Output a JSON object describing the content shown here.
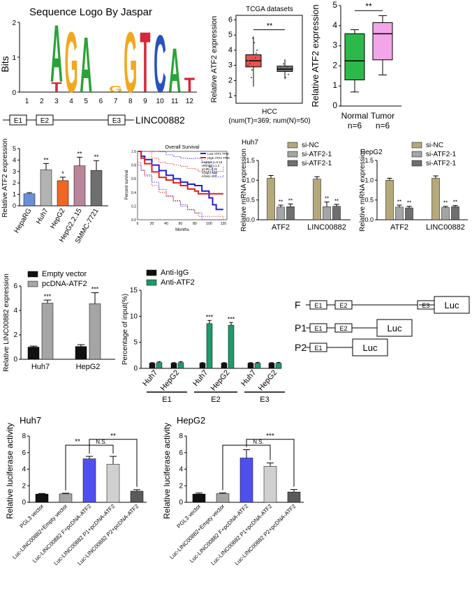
{
  "logo": {
    "title": "Sequence Logo By Jaspar",
    "ylabel": "Bits",
    "positions": [
      "1",
      "2",
      "3",
      "4",
      "5",
      "6",
      "7",
      "8",
      "9",
      "10",
      "11",
      "12"
    ],
    "letters": [
      {
        "pos": 3,
        "ch": "T",
        "color": "#d62839",
        "h": 0.3
      },
      {
        "pos": 3,
        "ch": "A",
        "color": "#2aa336",
        "h": 1.75
      },
      {
        "pos": 4,
        "ch": "G",
        "color": "#f2a81d",
        "h": 1.85
      },
      {
        "pos": 5,
        "ch": "A",
        "color": "#2aa336",
        "h": 1.7
      },
      {
        "pos": 7,
        "ch": "G",
        "color": "#f2a81d",
        "h": 0.2
      },
      {
        "pos": 8,
        "ch": "G",
        "color": "#f2a81d",
        "h": 1.85
      },
      {
        "pos": 9,
        "ch": "T",
        "color": "#d62839",
        "h": 1.85
      },
      {
        "pos": 10,
        "ch": "C",
        "color": "#2a52be",
        "h": 1.75
      },
      {
        "pos": 11,
        "ch": "A",
        "color": "#2aa336",
        "h": 1.35
      },
      {
        "pos": 12,
        "ch": "T",
        "color": "#d62839",
        "h": 0.45
      }
    ]
  },
  "gene_map": {
    "exons": [
      "E1",
      "E2",
      "E3"
    ],
    "name": "LINC00882"
  },
  "tcga": {
    "title": "TCGA datasets",
    "ylabel": "Relative ATF2 expression",
    "xlabel": "HCC",
    "n_label": "(num(T)=369; num(N)=50)",
    "sig": "**",
    "yticks": [
      "1",
      "2",
      "3",
      "4",
      "5",
      "6"
    ],
    "ylim": [
      0.5,
      6.3
    ],
    "boxes": [
      {
        "group": "T",
        "q1": 2.9,
        "median": 3.3,
        "q3": 3.7,
        "min": 1.6,
        "max": 4.9,
        "color": "#e8534f"
      },
      {
        "group": "N",
        "q1": 2.6,
        "median": 2.75,
        "q3": 2.95,
        "min": 2.1,
        "max": 3.4,
        "color": "#777777"
      }
    ]
  },
  "box_normal_tumor": {
    "ylabel": "Relative ATF2 expression",
    "yticks": [
      "0",
      "1",
      "2",
      "3",
      "4",
      "5"
    ],
    "ylim": [
      0,
      5
    ],
    "sig": "**",
    "groups": [
      {
        "name": "Normal",
        "n": "n=6",
        "min": 0.7,
        "q1": 1.3,
        "median": 2.25,
        "q3": 3.6,
        "max": 3.8,
        "color": "#2db84a"
      },
      {
        "name": "Tumor",
        "n": "n=6",
        "min": 1.55,
        "q1": 2.3,
        "median": 3.6,
        "q3": 4.15,
        "max": 4.5,
        "color": "#f2a6e8"
      }
    ]
  },
  "cell_lines": {
    "ylabel": "Relative ATF2 expression",
    "yticks": [
      "0",
      "1",
      "2",
      "3",
      "4",
      "5"
    ],
    "ylim": [
      0,
      5
    ],
    "bars": [
      {
        "cat": "HepaRG",
        "value": 1.05,
        "err": 0.1,
        "sig": "",
        "color": "#6b8fd6"
      },
      {
        "cat": "Huh7",
        "value": 3.15,
        "err": 0.55,
        "sig": "**",
        "color": "#b3b3b3"
      },
      {
        "cat": "HepG2",
        "value": 2.2,
        "err": 0.3,
        "sig": "*",
        "color": "#f26522"
      },
      {
        "cat": "HepG2.2.15",
        "value": 3.5,
        "err": 0.75,
        "sig": "**",
        "color": "#b8859b"
      },
      {
        "cat": "SMMC-7721",
        "value": 3.1,
        "err": 0.85,
        "sig": "**",
        "color": "#6f6f6f"
      }
    ]
  },
  "survival": {
    "title": "Overall Survival",
    "xlabel": "Months",
    "ylabel": "Percent survival",
    "legend": [
      "Low ATF2 TPM",
      "High ATF2 TPM"
    ],
    "stats": [
      "Logrank p=0.19",
      "HR(high)=1.3",
      "p(HR)=0.19",
      "n(high)=182",
      "n(low)=182"
    ],
    "xticks": [
      "0",
      "20",
      "40",
      "60",
      "80",
      "100",
      "120"
    ],
    "yticks": [
      "0.0",
      "0.2",
      "0.4",
      "0.6",
      "0.8",
      "1.0"
    ],
    "low_curve": [
      [
        0,
        1.0
      ],
      [
        5,
        0.93
      ],
      [
        10,
        0.88
      ],
      [
        20,
        0.8
      ],
      [
        30,
        0.72
      ],
      [
        40,
        0.65
      ],
      [
        50,
        0.6
      ],
      [
        60,
        0.55
      ],
      [
        70,
        0.52
      ],
      [
        80,
        0.5
      ],
      [
        90,
        0.42
      ],
      [
        100,
        0.32
      ],
      [
        105,
        0.22
      ],
      [
        110,
        0.15
      ],
      [
        120,
        0.15
      ]
    ],
    "high_curve": [
      [
        0,
        1.0
      ],
      [
        5,
        0.9
      ],
      [
        10,
        0.82
      ],
      [
        20,
        0.7
      ],
      [
        30,
        0.62
      ],
      [
        40,
        0.58
      ],
      [
        50,
        0.54
      ],
      [
        60,
        0.5
      ],
      [
        70,
        0.45
      ],
      [
        80,
        0.42
      ],
      [
        85,
        0.38
      ],
      [
        120,
        0.38
      ]
    ],
    "low_color": "#1f1fd6",
    "high_color": "#e0201c"
  },
  "sirna_huh7": {
    "title": "Huh7",
    "ylabel": "Relative mRNA expression",
    "yticks": [
      "0.0",
      "0.5",
      "1.0",
      "1.5"
    ],
    "ylim": [
      0,
      1.5
    ],
    "categories": [
      "ATF2",
      "LINC00882"
    ],
    "series": [
      {
        "name": "si-NC",
        "values": [
          1.05,
          1.03
        ],
        "err": [
          0.07,
          0.06
        ],
        "sig": [
          "",
          ""
        ],
        "color": "#b5a87a"
      },
      {
        "name": "si-ATF2-1",
        "values": [
          0.32,
          0.33
        ],
        "err": [
          0.05,
          0.12
        ],
        "sig": [
          "**",
          "**"
        ],
        "color": "#a5a5a5"
      },
      {
        "name": "si-ATF2-1",
        "values": [
          0.33,
          0.34
        ],
        "err": [
          0.07,
          0.05
        ],
        "sig": [
          "**",
          "**"
        ],
        "color": "#6f6f6f"
      }
    ]
  },
  "sirna_hepg2": {
    "title": "HepG2",
    "ylabel": "Relative mRNA expression",
    "yticks": [
      "0.0",
      "0.5",
      "1.0",
      "1.5"
    ],
    "ylim": [
      0,
      1.5
    ],
    "categories": [
      "ATF2",
      "LINC00882"
    ],
    "series": [
      {
        "name": "si-NC",
        "values": [
          1.0,
          1.05
        ],
        "err": [
          0.05,
          0.06
        ],
        "sig": [
          "",
          ""
        ],
        "color": "#b5a87a"
      },
      {
        "name": "si-ATF2-1",
        "values": [
          0.32,
          0.31
        ],
        "err": [
          0.05,
          0.03
        ],
        "sig": [
          "**",
          "**"
        ],
        "color": "#a5a5a5"
      },
      {
        "name": "si-ATF2-1",
        "values": [
          0.3,
          0.33
        ],
        "err": [
          0.04,
          0.03
        ],
        "sig": [
          "**",
          "**"
        ],
        "color": "#6f6f6f"
      }
    ]
  },
  "overexp": {
    "ylabel": "Relative LINC00882 expression",
    "yticks": [
      "0",
      "2",
      "4",
      "6"
    ],
    "ylim": [
      0,
      6
    ],
    "categories": [
      "Huh7",
      "HepG2"
    ],
    "series": [
      {
        "name": "Empty vector",
        "values": [
          1.0,
          1.05
        ],
        "err": [
          0.08,
          0.15
        ],
        "sig": [
          "",
          ""
        ],
        "color": "#111111"
      },
      {
        "name": "pcDNA-ATF2",
        "values": [
          4.6,
          4.55
        ],
        "err": [
          0.25,
          0.9
        ],
        "sig": [
          "***",
          "***"
        ],
        "color": "#a5a5a5"
      }
    ]
  },
  "chip": {
    "ylabel": "Percentage of input(%)",
    "yticks": [
      "0",
      "5",
      "10",
      "15"
    ],
    "ylim": [
      0,
      15
    ],
    "categories": [
      "Huh7",
      "HepG2",
      "Huh7",
      "HepG2",
      "Huh7",
      "HepG2"
    ],
    "groups": [
      "E1",
      "E2",
      "E3"
    ],
    "series": [
      {
        "name": "Anti-IgG",
        "values": [
          1.0,
          1.0,
          1.0,
          1.0,
          1.0,
          1.0
        ],
        "err": [
          0.1,
          0.1,
          0.1,
          0.1,
          0.1,
          0.1
        ],
        "sig": [
          "",
          "",
          "",
          "",
          "",
          ""
        ],
        "color": "#111111"
      },
      {
        "name": "Anti-ATF2",
        "values": [
          1.1,
          1.1,
          8.6,
          8.3,
          1.0,
          1.0
        ],
        "err": [
          0.2,
          0.2,
          0.6,
          0.5,
          0.15,
          0.15
        ],
        "sig": [
          "",
          "",
          "***",
          "***",
          "",
          ""
        ],
        "color": "#1f9a6b"
      }
    ]
  },
  "constructs": {
    "rows": [
      {
        "label": "F",
        "exons": [
          "E1",
          "E2",
          "E3"
        ],
        "reporter": "Luc"
      },
      {
        "label": "P1",
        "exons": [
          "E1",
          "E2"
        ],
        "reporter": "Luc"
      },
      {
        "label": "P2",
        "exons": [
          "E1"
        ],
        "reporter": "Luc"
      }
    ]
  },
  "luc_huh7": {
    "title": "Huh7",
    "ylabel": "Relative luciferase activity",
    "yticks": [
      "0",
      "2",
      "4",
      "6",
      "8"
    ],
    "ylim": [
      0,
      8
    ],
    "categories": [
      "PGL3 vector",
      "Luc-LINC00882+Empty vector",
      "Luc-LINC00882 F+pcDNA-ATF2",
      "Luc-LINC00882 P1+pcDNA-ATF2",
      "Luc-LINC00882 P2+pcDNA-ATF2"
    ],
    "values": [
      1.0,
      1.02,
      5.25,
      4.6,
      1.35
    ],
    "err": [
      0.07,
      0.08,
      0.3,
      0.95,
      0.18
    ],
    "colors": [
      "#111111",
      "#a5a5a5",
      "#4f4ff0",
      "#d0d0d0",
      "#5a5a5a"
    ],
    "brackets": [
      {
        "from": 1,
        "to": 2,
        "label": "**"
      },
      {
        "from": 2,
        "to": 3,
        "label": "N.S."
      },
      {
        "from": 2,
        "to": 4,
        "label": "**"
      }
    ]
  },
  "luc_hepg2": {
    "title": "HepG2",
    "ylabel": "Relative luciferase activity",
    "yticks": [
      "0",
      "2",
      "4",
      "6",
      "8"
    ],
    "ylim": [
      0,
      8
    ],
    "categories": [
      "PGL3 vector",
      "Luc-LINC00882+Empty vector",
      "Luc-LINC00882 F+pcDNA-ATF2",
      "Luc-LINC00882 P1+pcDNA-ATF2",
      "Luc-LINC00882 P2+pcDNA-ATF2"
    ],
    "values": [
      1.0,
      1.05,
      5.35,
      4.35,
      1.25
    ],
    "err": [
      0.12,
      0.08,
      1.0,
      0.4,
      0.3
    ],
    "colors": [
      "#111111",
      "#a5a5a5",
      "#4f4ff0",
      "#d0d0d0",
      "#5a5a5a"
    ],
    "brackets": [
      {
        "from": 1,
        "to": 2,
        "label": ""
      },
      {
        "from": 2,
        "to": 3,
        "label": "N.S."
      },
      {
        "from": 2,
        "to": 4,
        "label": "***"
      }
    ]
  },
  "chart_data": [
    {
      "type": "bar",
      "title": "",
      "categories": [
        "HepaRG",
        "Huh7",
        "HepG2",
        "HepG2.2.15",
        "SMMC-7721"
      ],
      "values": [
        1.05,
        3.15,
        2.2,
        3.5,
        3.1
      ],
      "ylabel": "Relative ATF2 expression",
      "ylim": [
        0,
        5
      ]
    },
    {
      "type": "bar",
      "title": "Huh7",
      "categories": [
        "ATF2",
        "LINC00882"
      ],
      "series": [
        {
          "name": "si-NC",
          "values": [
            1.05,
            1.03
          ]
        },
        {
          "name": "si-ATF2-1",
          "values": [
            0.32,
            0.33
          ]
        },
        {
          "name": "si-ATF2-1",
          "values": [
            0.33,
            0.34
          ]
        }
      ],
      "ylabel": "Relative mRNA expression",
      "ylim": [
        0,
        1.5
      ]
    },
    {
      "type": "bar",
      "title": "HepG2",
      "categories": [
        "ATF2",
        "LINC00882"
      ],
      "series": [
        {
          "name": "si-NC",
          "values": [
            1.0,
            1.05
          ]
        },
        {
          "name": "si-ATF2-1",
          "values": [
            0.32,
            0.31
          ]
        },
        {
          "name": "si-ATF2-1",
          "values": [
            0.3,
            0.33
          ]
        }
      ],
      "ylabel": "Relative mRNA expression",
      "ylim": [
        0,
        1.5
      ]
    },
    {
      "type": "bar",
      "title": "",
      "categories": [
        "Huh7",
        "HepG2"
      ],
      "series": [
        {
          "name": "Empty vector",
          "values": [
            1.0,
            1.05
          ]
        },
        {
          "name": "pcDNA-ATF2",
          "values": [
            4.6,
            4.55
          ]
        }
      ],
      "ylabel": "Relative LINC00882 expression",
      "ylim": [
        0,
        6
      ]
    },
    {
      "type": "bar",
      "title": "",
      "categories": [
        "Huh7",
        "HepG2",
        "Huh7",
        "HepG2",
        "Huh7",
        "HepG2"
      ],
      "series": [
        {
          "name": "Anti-IgG",
          "values": [
            1.0,
            1.0,
            1.0,
            1.0,
            1.0,
            1.0
          ]
        },
        {
          "name": "Anti-ATF2",
          "values": [
            1.1,
            1.1,
            8.6,
            8.3,
            1.0,
            1.0
          ]
        }
      ],
      "ylabel": "Percentage of input(%)",
      "ylim": [
        0,
        15
      ]
    },
    {
      "type": "bar",
      "title": "Huh7",
      "categories": [
        "PGL3 vector",
        "Luc-LINC00882+Empty vector",
        "Luc-LINC00882 F+pcDNA-ATF2",
        "Luc-LINC00882 P1+pcDNA-ATF2",
        "Luc-LINC00882 P2+pcDNA-ATF2"
      ],
      "values": [
        1.0,
        1.02,
        5.25,
        4.6,
        1.35
      ],
      "ylabel": "Relative luciferase activity",
      "ylim": [
        0,
        8
      ]
    },
    {
      "type": "bar",
      "title": "HepG2",
      "categories": [
        "PGL3 vector",
        "Luc-LINC00882+Empty vector",
        "Luc-LINC00882 F+pcDNA-ATF2",
        "Luc-LINC00882 P1+pcDNA-ATF2",
        "Luc-LINC00882 P2+pcDNA-ATF2"
      ],
      "values": [
        1.0,
        1.05,
        5.35,
        4.35,
        1.25
      ],
      "ylabel": "Relative luciferase activity",
      "ylim": [
        0,
        8
      ]
    }
  ]
}
